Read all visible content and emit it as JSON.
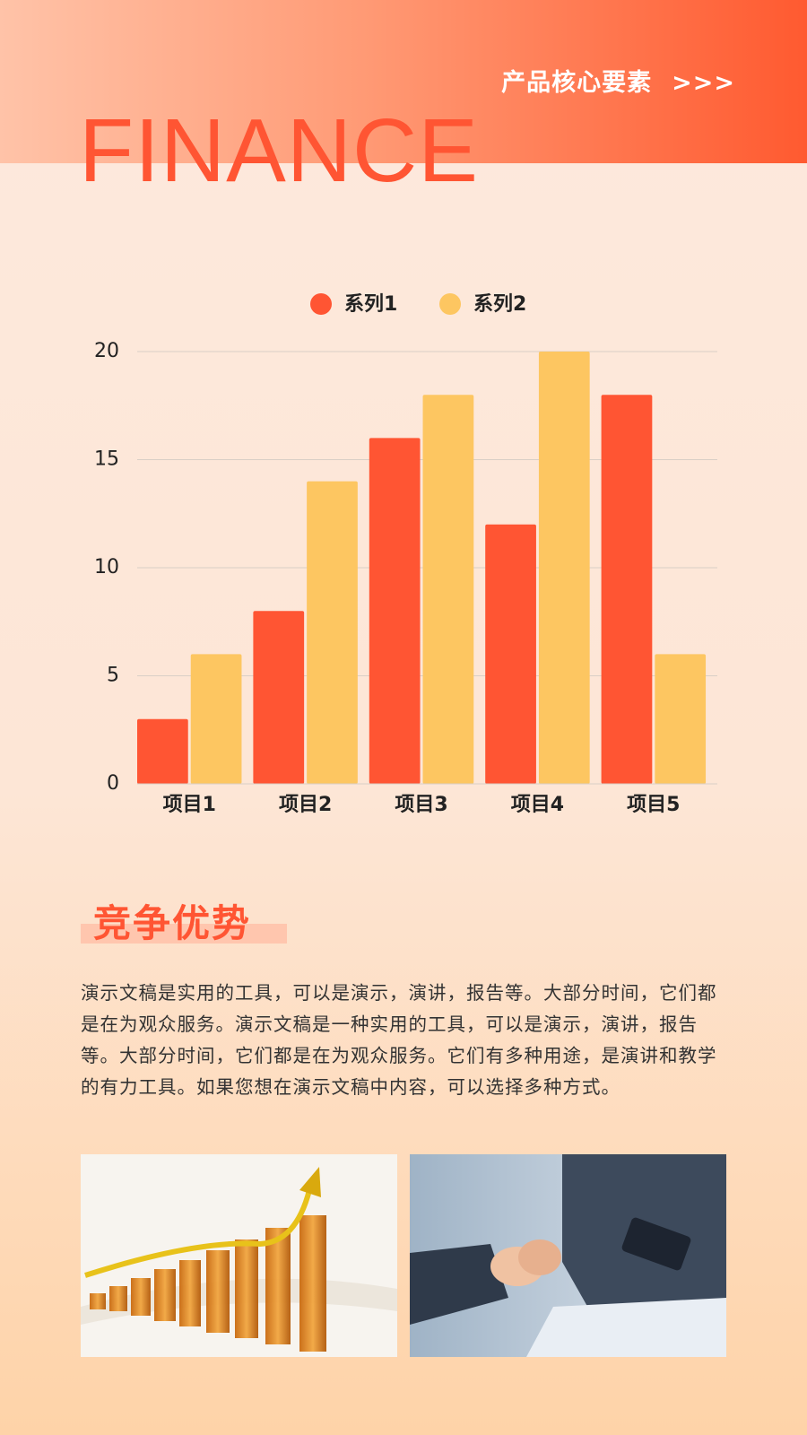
{
  "header": {
    "tag": "产品核心要素",
    "arrow": ">>>",
    "title": "FINANCE"
  },
  "chart_data": {
    "type": "bar",
    "categories": [
      "项目1",
      "项目2",
      "项目3",
      "项目4",
      "项目5"
    ],
    "series": [
      {
        "name": "系列1",
        "color": "#ff5533",
        "values": [
          3,
          8,
          16,
          12,
          18
        ]
      },
      {
        "name": "系列2",
        "color": "#fdc661",
        "values": [
          6,
          14,
          18,
          20,
          6
        ]
      }
    ],
    "ylim": [
      0,
      20
    ],
    "yticks": [
      0,
      5,
      10,
      15,
      20
    ],
    "grid": true,
    "legend": "top"
  },
  "section": {
    "title": "竞争优势",
    "body": "演示文稿是实用的工具，可以是演示，演讲，报告等。大部分时间，它们都是在为观众服务。演示文稿是一种实用的工具，可以是演示，演讲，报告等。大部分时间，它们都是在为观众服务。它们有多种用途，是演讲和教学的有力工具。如果您想在演示文稿中内容，可以选择多种方式。"
  }
}
